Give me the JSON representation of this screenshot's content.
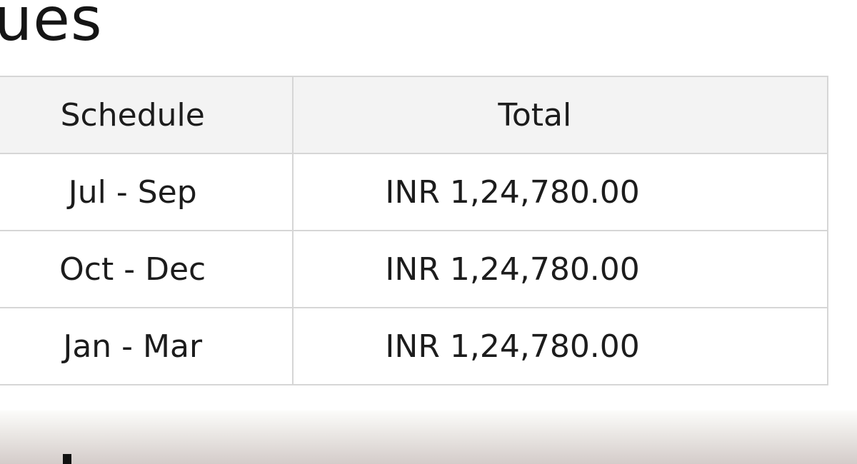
{
  "section_title": "ues",
  "table": {
    "headers": [
      "Schedule",
      "Total"
    ],
    "rows": [
      {
        "schedule": "Jul - Sep",
        "total": "INR 1,24,780.00"
      },
      {
        "schedule": "Oct - Dec",
        "total": "INR 1,24,780.00"
      },
      {
        "schedule": "Jan - Mar",
        "total": "INR 1,24,780.00"
      }
    ]
  }
}
